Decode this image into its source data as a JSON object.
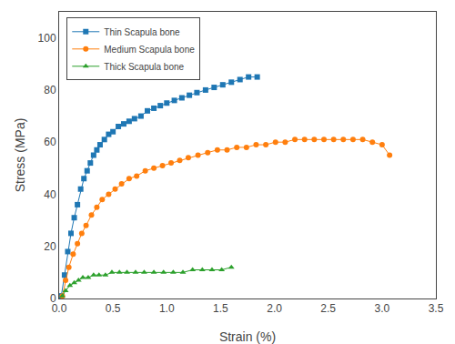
{
  "chart_data": {
    "type": "line",
    "xlabel": "Strain (%)",
    "ylabel": "Stress (MPa)",
    "xlim": [
      0,
      3.5
    ],
    "ylim": [
      0,
      110
    ],
    "xticks": [
      {
        "value": 0.0,
        "label": "0.0"
      },
      0.5,
      {
        "value": 1.0,
        "label": "1.0"
      },
      1.5,
      {
        "value": 2.0,
        "label": "2.0"
      },
      2.5,
      {
        "value": 3.0,
        "label": "3.0"
      },
      3.5
    ],
    "yticks": [
      0,
      20,
      40,
      60,
      80,
      100
    ],
    "grid": false,
    "legend": "upper left",
    "series": [
      {
        "name": "Thin Scapula bone",
        "marker": "square",
        "x": [
          0.02,
          0.05,
          0.08,
          0.11,
          0.14,
          0.17,
          0.2,
          0.23,
          0.26,
          0.29,
          0.32,
          0.35,
          0.38,
          0.42,
          0.46,
          0.5,
          0.55,
          0.6,
          0.65,
          0.7,
          0.76,
          0.82,
          0.88,
          0.94,
          1.0,
          1.07,
          1.14,
          1.21,
          1.28,
          1.36,
          1.44,
          1.52,
          1.6,
          1.68,
          1.76,
          1.84
        ],
        "values": [
          1,
          9,
          18,
          25,
          31,
          36,
          42,
          46,
          49,
          52,
          55,
          57,
          59,
          61,
          63,
          64,
          66,
          67,
          68,
          69,
          70,
          72,
          73,
          74,
          75,
          76,
          77,
          78,
          79,
          80,
          81,
          82,
          83,
          84,
          85,
          85
        ]
      },
      {
        "name": "Medium Scapula bone",
        "marker": "circle",
        "x": [
          0.03,
          0.06,
          0.09,
          0.13,
          0.17,
          0.21,
          0.25,
          0.3,
          0.35,
          0.4,
          0.46,
          0.52,
          0.58,
          0.65,
          0.72,
          0.8,
          0.88,
          0.96,
          1.04,
          1.12,
          1.2,
          1.29,
          1.38,
          1.47,
          1.56,
          1.65,
          1.74,
          1.83,
          1.92,
          2.01,
          2.1,
          2.19,
          2.28,
          2.37,
          2.46,
          2.55,
          2.64,
          2.73,
          2.82,
          2.91,
          3.0,
          3.07
        ],
        "values": [
          1,
          7,
          12,
          17,
          21,
          25,
          28,
          32,
          35,
          38,
          40,
          42,
          44,
          46,
          47,
          49,
          50,
          51,
          52,
          53,
          54,
          55,
          56,
          57,
          57,
          58,
          58,
          59,
          59,
          60,
          60,
          61,
          61,
          61,
          61,
          61,
          61,
          61,
          61,
          60,
          59,
          55
        ]
      },
      {
        "name": "Thick Scapula bone",
        "marker": "triangle",
        "x": [
          0.03,
          0.06,
          0.1,
          0.14,
          0.18,
          0.22,
          0.27,
          0.32,
          0.37,
          0.43,
          0.49,
          0.56,
          0.63,
          0.71,
          0.79,
          0.88,
          0.97,
          1.06,
          1.15,
          1.24,
          1.33,
          1.42,
          1.51,
          1.6
        ],
        "values": [
          1,
          3,
          5,
          6,
          7,
          8,
          8,
          9,
          9,
          9,
          10,
          10,
          10,
          10,
          10,
          10,
          10,
          10,
          10,
          11,
          11,
          11,
          11,
          12
        ]
      }
    ]
  }
}
